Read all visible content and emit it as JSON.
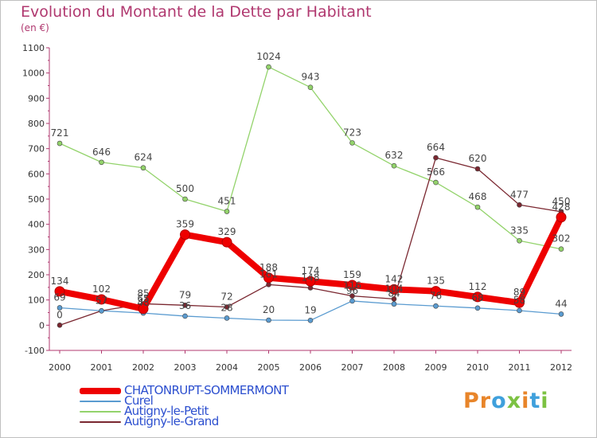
{
  "header": {
    "title": "Evolution du Montant de la Dette par Habitant",
    "unit": "(en €)"
  },
  "logo": {
    "text": "Proxiti",
    "letter_colors": [
      "#e8852a",
      "#e8852a",
      "#3fa0dc",
      "#7cc242",
      "#e8852a",
      "#3fa0dc",
      "#7cc242"
    ]
  },
  "chart_data": {
    "type": "line",
    "title": "Evolution du Montant de la Dette par Habitant",
    "subtitle": "(en €)",
    "xlabel": "",
    "ylabel": "",
    "x": [
      "2000",
      "2001",
      "2002",
      "2003",
      "2004",
      "2005",
      "2006",
      "2007",
      "2008",
      "2009",
      "2010",
      "2011",
      "2012"
    ],
    "ylim": [
      -100,
      1100
    ],
    "yticks": [
      -100,
      0,
      100,
      200,
      300,
      400,
      500,
      600,
      700,
      800,
      900,
      1000,
      1100
    ],
    "grid": false,
    "legend": "bottom-left",
    "series": [
      {
        "name": "CHATONRUPT-SOMMERMONT",
        "color": "#ee0000",
        "values": [
          134,
          102,
          65,
          359,
          329,
          188,
          174,
          159,
          142,
          135,
          112,
          89,
          428
        ]
      },
      {
        "name": "Curel",
        "color": "#5a9bd0",
        "values": [
          69,
          57,
          48,
          36,
          28,
          20,
          19,
          96,
          84,
          76,
          68,
          58,
          44
        ]
      },
      {
        "name": "Autigny-le-Petit",
        "color": "#93d36b",
        "values": [
          721,
          646,
          624,
          500,
          451,
          1024,
          943,
          723,
          632,
          566,
          468,
          335,
          302
        ]
      },
      {
        "name": "Autigny-le-Grand",
        "color": "#7a2730",
        "values": [
          0,
          57,
          85,
          79,
          72,
          161,
          148,
          116,
          104,
          664,
          620,
          477,
          450
        ]
      }
    ]
  }
}
